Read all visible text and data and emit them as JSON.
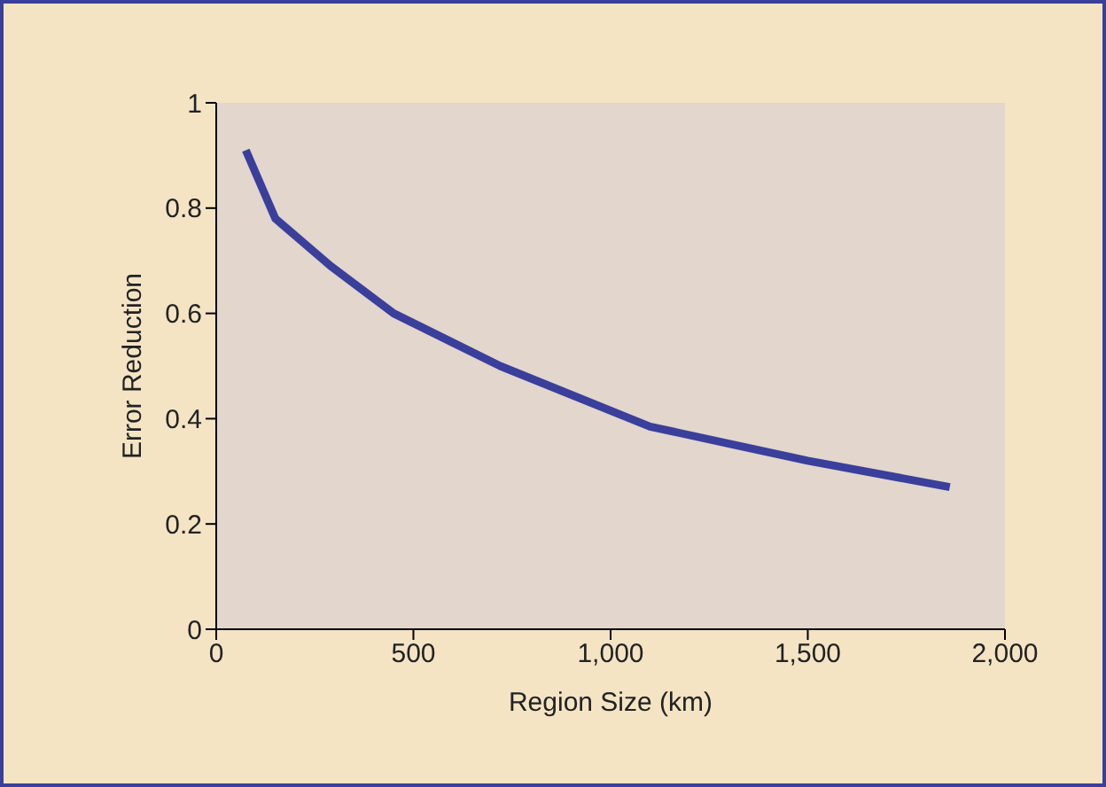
{
  "chart_data": {
    "type": "line",
    "xlabel": "Region Size (km)",
    "ylabel": "Error Reduction",
    "x": [
      75,
      150,
      290,
      450,
      720,
      1100,
      1500,
      1860
    ],
    "series": [
      {
        "color": "#3a3f9c",
        "values": [
          0.91,
          0.78,
          0.69,
          0.6,
          0.5,
          0.385,
          0.32,
          0.27
        ]
      }
    ],
    "xlim": [
      0,
      2000
    ],
    "xticks": [
      0,
      {
        "value": 500,
        "label": "500"
      },
      {
        "value": 1000,
        "label": "1,000"
      },
      {
        "value": 1500,
        "label": "1,500"
      },
      {
        "value": 2000,
        "label": "2,000"
      }
    ],
    "ylim": [
      0,
      1
    ],
    "yticks": [
      0,
      0.2,
      0.4,
      0.6,
      0.8,
      1
    ],
    "grid": false,
    "legend": false,
    "marker": "none",
    "line_style": "solid"
  }
}
